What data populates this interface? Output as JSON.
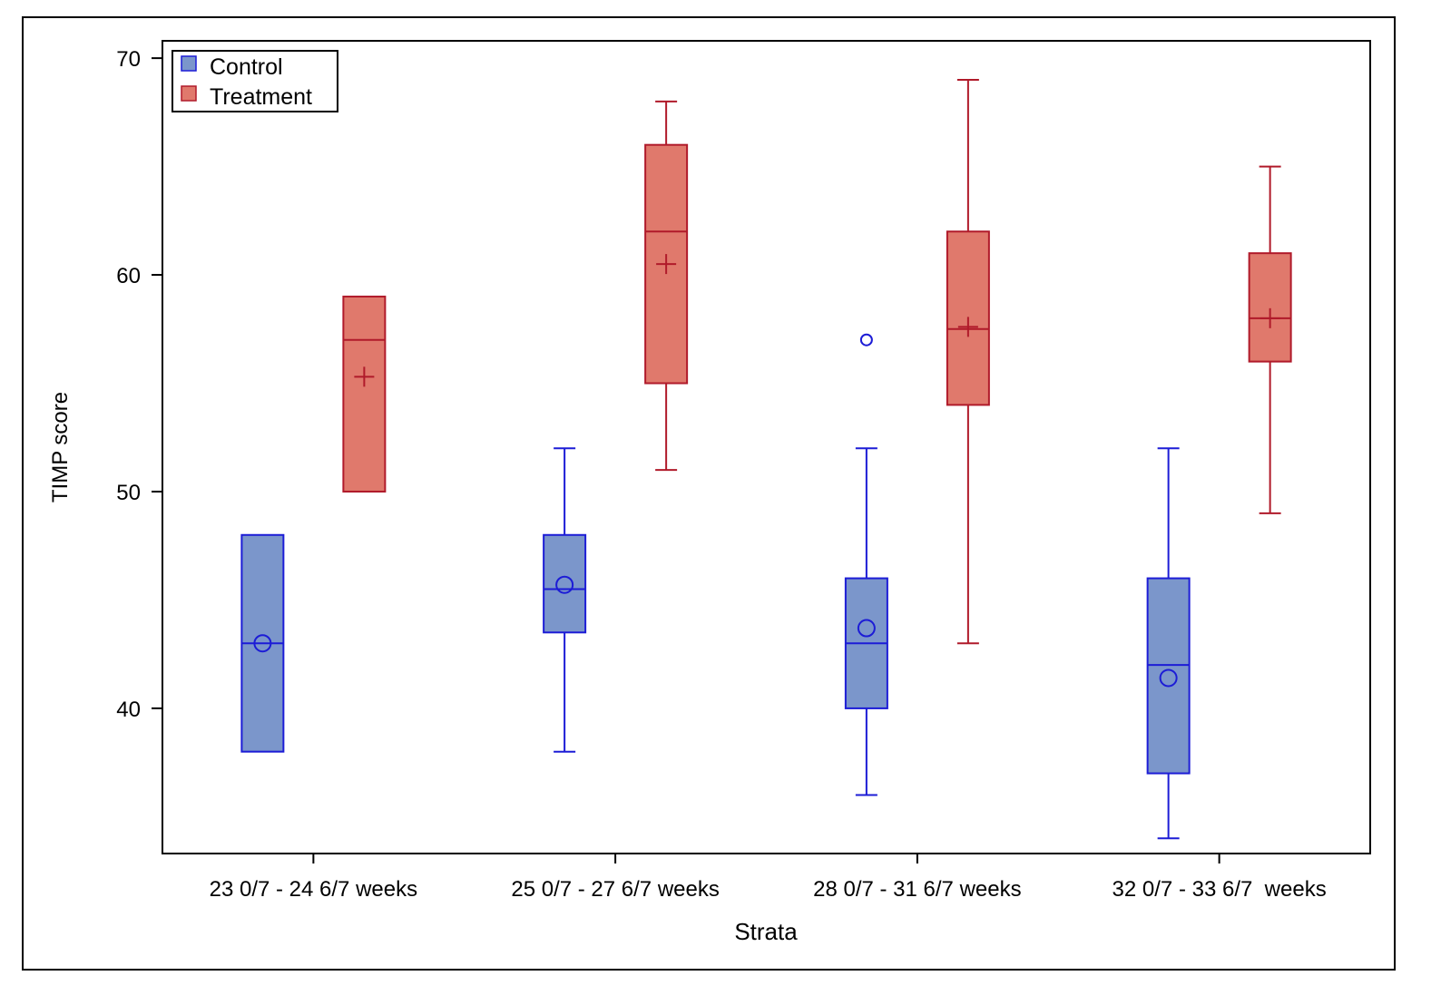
{
  "chart_data": {
    "type": "box",
    "xlabel": "Strata",
    "ylabel": "TIMP score",
    "ylim": [
      33.3,
      70.8
    ],
    "yticks": [
      40,
      50,
      60,
      70
    ],
    "grid": false,
    "legend_position": "top-left",
    "categories": [
      "23 0/7 - 24 6/7 weeks",
      "25 0/7 - 27 6/7 weeks",
      "28 0/7 - 31 6/7 weeks",
      "32 0/7 - 33 6/7  weeks"
    ],
    "series": [
      {
        "name": "Control",
        "fill": "#7b96cb",
        "stroke": "#1c1cd6",
        "mean_marker": "circle",
        "boxes": [
          {
            "min": 38,
            "q1": 38,
            "median": 43,
            "q3": 48,
            "max": 48,
            "mean": 43,
            "outliers": []
          },
          {
            "min": 38,
            "q1": 43.5,
            "median": 45.5,
            "q3": 48,
            "max": 52,
            "mean": 45.7,
            "outliers": []
          },
          {
            "min": 36,
            "q1": 40,
            "median": 43,
            "q3": 46,
            "max": 52,
            "mean": 43.7,
            "outliers": [
              57
            ]
          },
          {
            "min": 34,
            "q1": 37,
            "median": 42,
            "q3": 46,
            "max": 52,
            "mean": 41.4,
            "outliers": []
          }
        ]
      },
      {
        "name": "Treatment",
        "fill": "#e0796c",
        "stroke": "#b01a2a",
        "mean_marker": "plus",
        "boxes": [
          {
            "min": 50,
            "q1": 50,
            "median": 57,
            "q3": 59,
            "max": 59,
            "mean": 55.3,
            "outliers": []
          },
          {
            "min": 51,
            "q1": 55,
            "median": 62,
            "q3": 66,
            "max": 68,
            "mean": 60.5,
            "outliers": []
          },
          {
            "min": 43,
            "q1": 54,
            "median": 57.5,
            "q3": 62,
            "max": 69,
            "mean": 57.6,
            "outliers": []
          },
          {
            "min": 49,
            "q1": 56,
            "median": 58,
            "q3": 61,
            "max": 65,
            "mean": 58,
            "outliers": []
          }
        ]
      }
    ]
  }
}
